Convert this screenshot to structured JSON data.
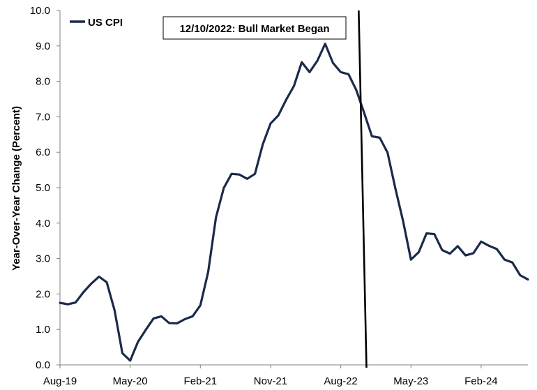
{
  "chart_data": {
    "type": "line",
    "title": "",
    "xlabel": "",
    "ylabel": "Year-Over-Year Change (Percent)",
    "ylim": [
      0,
      10
    ],
    "yticks": [
      "0.0",
      "1.0",
      "2.0",
      "3.0",
      "4.0",
      "5.0",
      "6.0",
      "7.0",
      "8.0",
      "9.0",
      "10.0"
    ],
    "x_start": "Aug-19",
    "xticks": [
      {
        "label": "Aug-19",
        "index": 0
      },
      {
        "label": "May-20",
        "index": 9
      },
      {
        "label": "Feb-21",
        "index": 18
      },
      {
        "label": "Nov-21",
        "index": 27
      },
      {
        "label": "Aug-22",
        "index": 36
      },
      {
        "label": "May-23",
        "index": 45
      },
      {
        "label": "Feb-24",
        "index": 54
      }
    ],
    "grid": false,
    "legend_position": "top-left",
    "colors": {
      "series": "#1b2a4a",
      "marker_line": "#000000"
    },
    "series": [
      {
        "name": "US CPI",
        "values": [
          1.75,
          1.71,
          1.76,
          2.05,
          2.29,
          2.49,
          2.33,
          1.54,
          0.33,
          0.12,
          0.65,
          0.99,
          1.31,
          1.37,
          1.18,
          1.17,
          1.29,
          1.37,
          1.68,
          2.62,
          4.16,
          4.99,
          5.39,
          5.37,
          5.25,
          5.39,
          6.22,
          6.81,
          7.04,
          7.48,
          7.87,
          8.54,
          8.26,
          8.58,
          9.06,
          8.52,
          8.26,
          8.2,
          7.75,
          7.11,
          6.45,
          6.41,
          5.99,
          4.98,
          4.05,
          2.97,
          3.18,
          3.71,
          3.69,
          3.24,
          3.14,
          3.35,
          3.09,
          3.15,
          3.48,
          3.36,
          3.27,
          2.97,
          2.89,
          2.53,
          2.41
        ]
      }
    ],
    "annotation": {
      "text": "12/10/2022: Bull Market Began",
      "index_top": 38.3,
      "index_bottom": 39.3
    }
  }
}
